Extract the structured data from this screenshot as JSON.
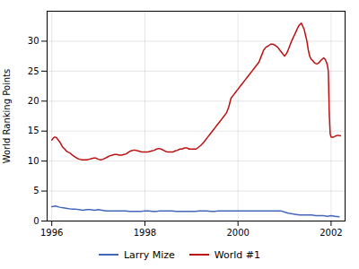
{
  "chart_data": {
    "type": "line",
    "ylabel": "World Ranking Points",
    "xlim": [
      1995.9,
      2002.3
    ],
    "ylim": [
      0,
      35
    ],
    "xticks": [
      1996,
      1998,
      2000,
      2002
    ],
    "yticks": [
      0,
      5,
      10,
      15,
      20,
      25,
      30
    ],
    "grid": true,
    "legend": "bottom",
    "series": [
      {
        "name": "Larry Mize",
        "color": "#4466bb",
        "x": [
          1996.0,
          1996.08,
          1996.17,
          1996.25,
          1996.33,
          1996.42,
          1996.5,
          1996.58,
          1996.67,
          1996.75,
          1996.83,
          1996.92,
          1997.0,
          1997.08,
          1997.17,
          1997.25,
          1997.33,
          1997.42,
          1997.5,
          1997.58,
          1997.67,
          1997.75,
          1997.83,
          1997.92,
          1998.0,
          1998.08,
          1998.17,
          1998.25,
          1998.33,
          1998.42,
          1998.5,
          1998.58,
          1998.67,
          1998.75,
          1998.83,
          1998.92,
          1999.0,
          1999.08,
          1999.17,
          1999.25,
          1999.33,
          1999.42,
          1999.5,
          1999.58,
          1999.67,
          1999.75,
          1999.83,
          1999.92,
          2000.0,
          2000.08,
          2000.17,
          2000.25,
          2000.33,
          2000.42,
          2000.5,
          2000.58,
          2000.67,
          2000.75,
          2000.83,
          2000.92,
          2001.0,
          2001.08,
          2001.17,
          2001.25,
          2001.33,
          2001.42,
          2001.5,
          2001.58,
          2001.67,
          2001.75,
          2001.83,
          2001.92,
          2002.0,
          2002.08,
          2002.17
        ],
        "values": [
          2.4,
          2.5,
          2.3,
          2.2,
          2.1,
          2.0,
          2.0,
          1.9,
          1.8,
          1.9,
          1.9,
          1.8,
          1.9,
          1.8,
          1.7,
          1.7,
          1.7,
          1.7,
          1.7,
          1.7,
          1.6,
          1.6,
          1.6,
          1.6,
          1.7,
          1.7,
          1.6,
          1.6,
          1.7,
          1.7,
          1.7,
          1.7,
          1.6,
          1.6,
          1.6,
          1.6,
          1.6,
          1.6,
          1.7,
          1.7,
          1.7,
          1.6,
          1.6,
          1.7,
          1.7,
          1.7,
          1.7,
          1.7,
          1.7,
          1.7,
          1.7,
          1.7,
          1.7,
          1.7,
          1.7,
          1.7,
          1.7,
          1.7,
          1.7,
          1.7,
          1.5,
          1.3,
          1.2,
          1.1,
          1.0,
          1.0,
          1.0,
          1.0,
          0.9,
          0.9,
          0.9,
          0.8,
          0.9,
          0.8,
          0.7
        ]
      },
      {
        "name": "World #1",
        "color": "#bb1111",
        "x": [
          1996.0,
          1996.02,
          1996.04,
          1996.06,
          1996.08,
          1996.1,
          1996.12,
          1996.14,
          1996.16,
          1996.18,
          1996.2,
          1996.22,
          1996.25,
          1996.28,
          1996.31,
          1996.35,
          1996.4,
          1996.44,
          1996.48,
          1996.52,
          1996.56,
          1996.6,
          1996.65,
          1996.7,
          1996.75,
          1996.8,
          1996.85,
          1996.9,
          1996.95,
          1997.0,
          1997.05,
          1997.1,
          1997.15,
          1997.2,
          1997.25,
          1997.3,
          1997.35,
          1997.4,
          1997.45,
          1997.5,
          1997.55,
          1997.6,
          1997.65,
          1997.7,
          1997.75,
          1997.8,
          1997.85,
          1997.9,
          1997.95,
          1998.0,
          1998.05,
          1998.1,
          1998.15,
          1998.2,
          1998.25,
          1998.3,
          1998.35,
          1998.4,
          1998.45,
          1998.5,
          1998.55,
          1998.6,
          1998.65,
          1998.7,
          1998.75,
          1998.8,
          1998.85,
          1998.9,
          1998.95,
          1999.0,
          1999.05,
          1999.1,
          1999.15,
          1999.2,
          1999.25,
          1999.3,
          1999.35,
          1999.4,
          1999.45,
          1999.5,
          1999.55,
          1999.6,
          1999.65,
          1999.7,
          1999.75,
          1999.8,
          1999.85,
          1999.9,
          1999.95,
          2000.0,
          2000.05,
          2000.1,
          2000.15,
          2000.2,
          2000.25,
          2000.3,
          2000.35,
          2000.4,
          2000.45,
          2000.5,
          2000.55,
          2000.6,
          2000.65,
          2000.7,
          2000.75,
          2000.8,
          2000.85,
          2000.9,
          2000.95,
          2001.0,
          2001.03,
          2001.06,
          2001.09,
          2001.12,
          2001.15,
          2001.18,
          2001.21,
          2001.24,
          2001.27,
          2001.3,
          2001.33,
          2001.36,
          2001.39,
          2001.42,
          2001.45,
          2001.48,
          2001.51,
          2001.54,
          2001.57,
          2001.6,
          2001.63,
          2001.66,
          2001.69,
          2001.72,
          2001.75,
          2001.78,
          2001.81,
          2001.84,
          2001.87,
          2001.9,
          2001.92,
          2001.94,
          2001.96,
          2001.98,
          2002.0,
          2002.05,
          2002.1,
          2002.15,
          2002.2
        ],
        "values": [
          13.5,
          13.7,
          13.9,
          14.0,
          14.0,
          13.9,
          13.7,
          13.5,
          13.3,
          13.1,
          12.8,
          12.5,
          12.2,
          12.0,
          11.7,
          11.5,
          11.3,
          11.0,
          10.8,
          10.6,
          10.4,
          10.3,
          10.2,
          10.2,
          10.2,
          10.3,
          10.4,
          10.5,
          10.5,
          10.3,
          10.2,
          10.3,
          10.5,
          10.7,
          10.9,
          11.0,
          11.1,
          11.1,
          11.0,
          11.0,
          11.1,
          11.2,
          11.5,
          11.7,
          11.8,
          11.8,
          11.7,
          11.6,
          11.5,
          11.5,
          11.5,
          11.6,
          11.7,
          11.8,
          12.0,
          12.1,
          12.0,
          11.8,
          11.6,
          11.5,
          11.5,
          11.5,
          11.7,
          11.8,
          12.0,
          12.0,
          12.2,
          12.2,
          12.0,
          12.0,
          12.0,
          12.0,
          12.3,
          12.6,
          13.0,
          13.5,
          14.0,
          14.5,
          15.0,
          15.5,
          16.0,
          16.5,
          17.0,
          17.5,
          18.0,
          19.0,
          20.5,
          21.0,
          21.5,
          22.0,
          22.5,
          23.0,
          23.5,
          24.0,
          24.5,
          25.0,
          25.5,
          26.0,
          26.5,
          27.5,
          28.5,
          29.0,
          29.2,
          29.5,
          29.5,
          29.3,
          29.0,
          28.5,
          28.0,
          27.5,
          27.8,
          28.2,
          28.8,
          29.4,
          30.0,
          30.5,
          31.0,
          31.5,
          32.0,
          32.5,
          32.8,
          33.0,
          32.5,
          32.0,
          31.0,
          30.0,
          28.5,
          27.5,
          27.0,
          26.8,
          26.5,
          26.3,
          26.2,
          26.3,
          26.5,
          26.8,
          27.0,
          27.2,
          27.0,
          26.5,
          26.0,
          25.0,
          18.0,
          14.5,
          14.0,
          14.0,
          14.2,
          14.3,
          14.2
        ]
      }
    ]
  }
}
